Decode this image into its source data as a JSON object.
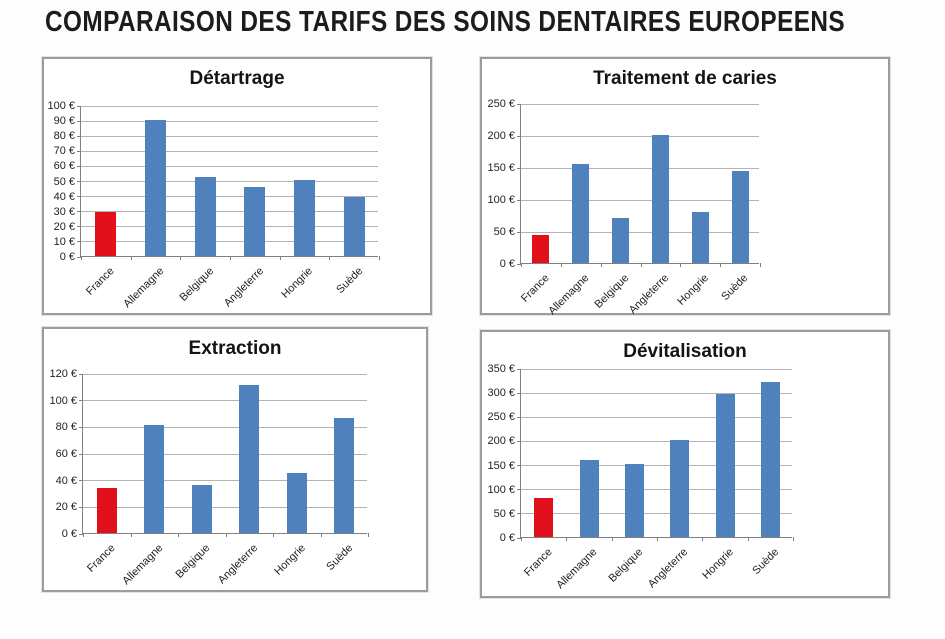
{
  "page_title": "COMPARAISON DES TARIFS DES SOINS DENTAIRES EUROPEENS",
  "colors": {
    "highlight_bar": "#e2101a",
    "default_bar": "#4f81bd",
    "gridline": "#b4b4b4",
    "axis": "#808080",
    "panel_border": "#9c9c9c",
    "text": "#1c1c1c"
  },
  "chart_data": [
    {
      "type": "bar",
      "title": "Détartrage",
      "categories": [
        "France",
        "Allemagne",
        "Belgique",
        "Angleterre",
        "Hongrie",
        "Suède"
      ],
      "values": [
        29,
        90,
        52,
        46,
        50,
        39
      ],
      "ylim": [
        0,
        100
      ],
      "ytick_step": 10,
      "currency": "€",
      "highlight_index": 0,
      "grid": true,
      "legend": "none"
    },
    {
      "type": "bar",
      "title": "Traitement de caries",
      "categories": [
        "France",
        "Allemagne",
        "Belgique",
        "Angleterre",
        "Hongrie",
        "Suède"
      ],
      "values": [
        43,
        155,
        71,
        200,
        80,
        144
      ],
      "ylim": [
        0,
        250
      ],
      "ytick_step": 50,
      "currency": "€",
      "highlight_index": 0,
      "grid": true,
      "legend": "none"
    },
    {
      "type": "bar",
      "title": "Extraction",
      "categories": [
        "France",
        "Allemagne",
        "Belgique",
        "Angleterre",
        "Hongrie",
        "Suède"
      ],
      "values": [
        34,
        81,
        36,
        111,
        45,
        86
      ],
      "ylim": [
        0,
        120
      ],
      "ytick_step": 20,
      "currency": "€",
      "highlight_index": 0,
      "grid": true,
      "legend": "none"
    },
    {
      "type": "bar",
      "title": "Dévitalisation",
      "categories": [
        "France",
        "Allemagne",
        "Belgique",
        "Angleterre",
        "Hongrie",
        "Suède"
      ],
      "values": [
        80,
        160,
        152,
        200,
        297,
        320
      ],
      "ylim": [
        0,
        350
      ],
      "ytick_step": 50,
      "currency": "€",
      "highlight_index": 0,
      "grid": true,
      "legend": "none"
    }
  ]
}
